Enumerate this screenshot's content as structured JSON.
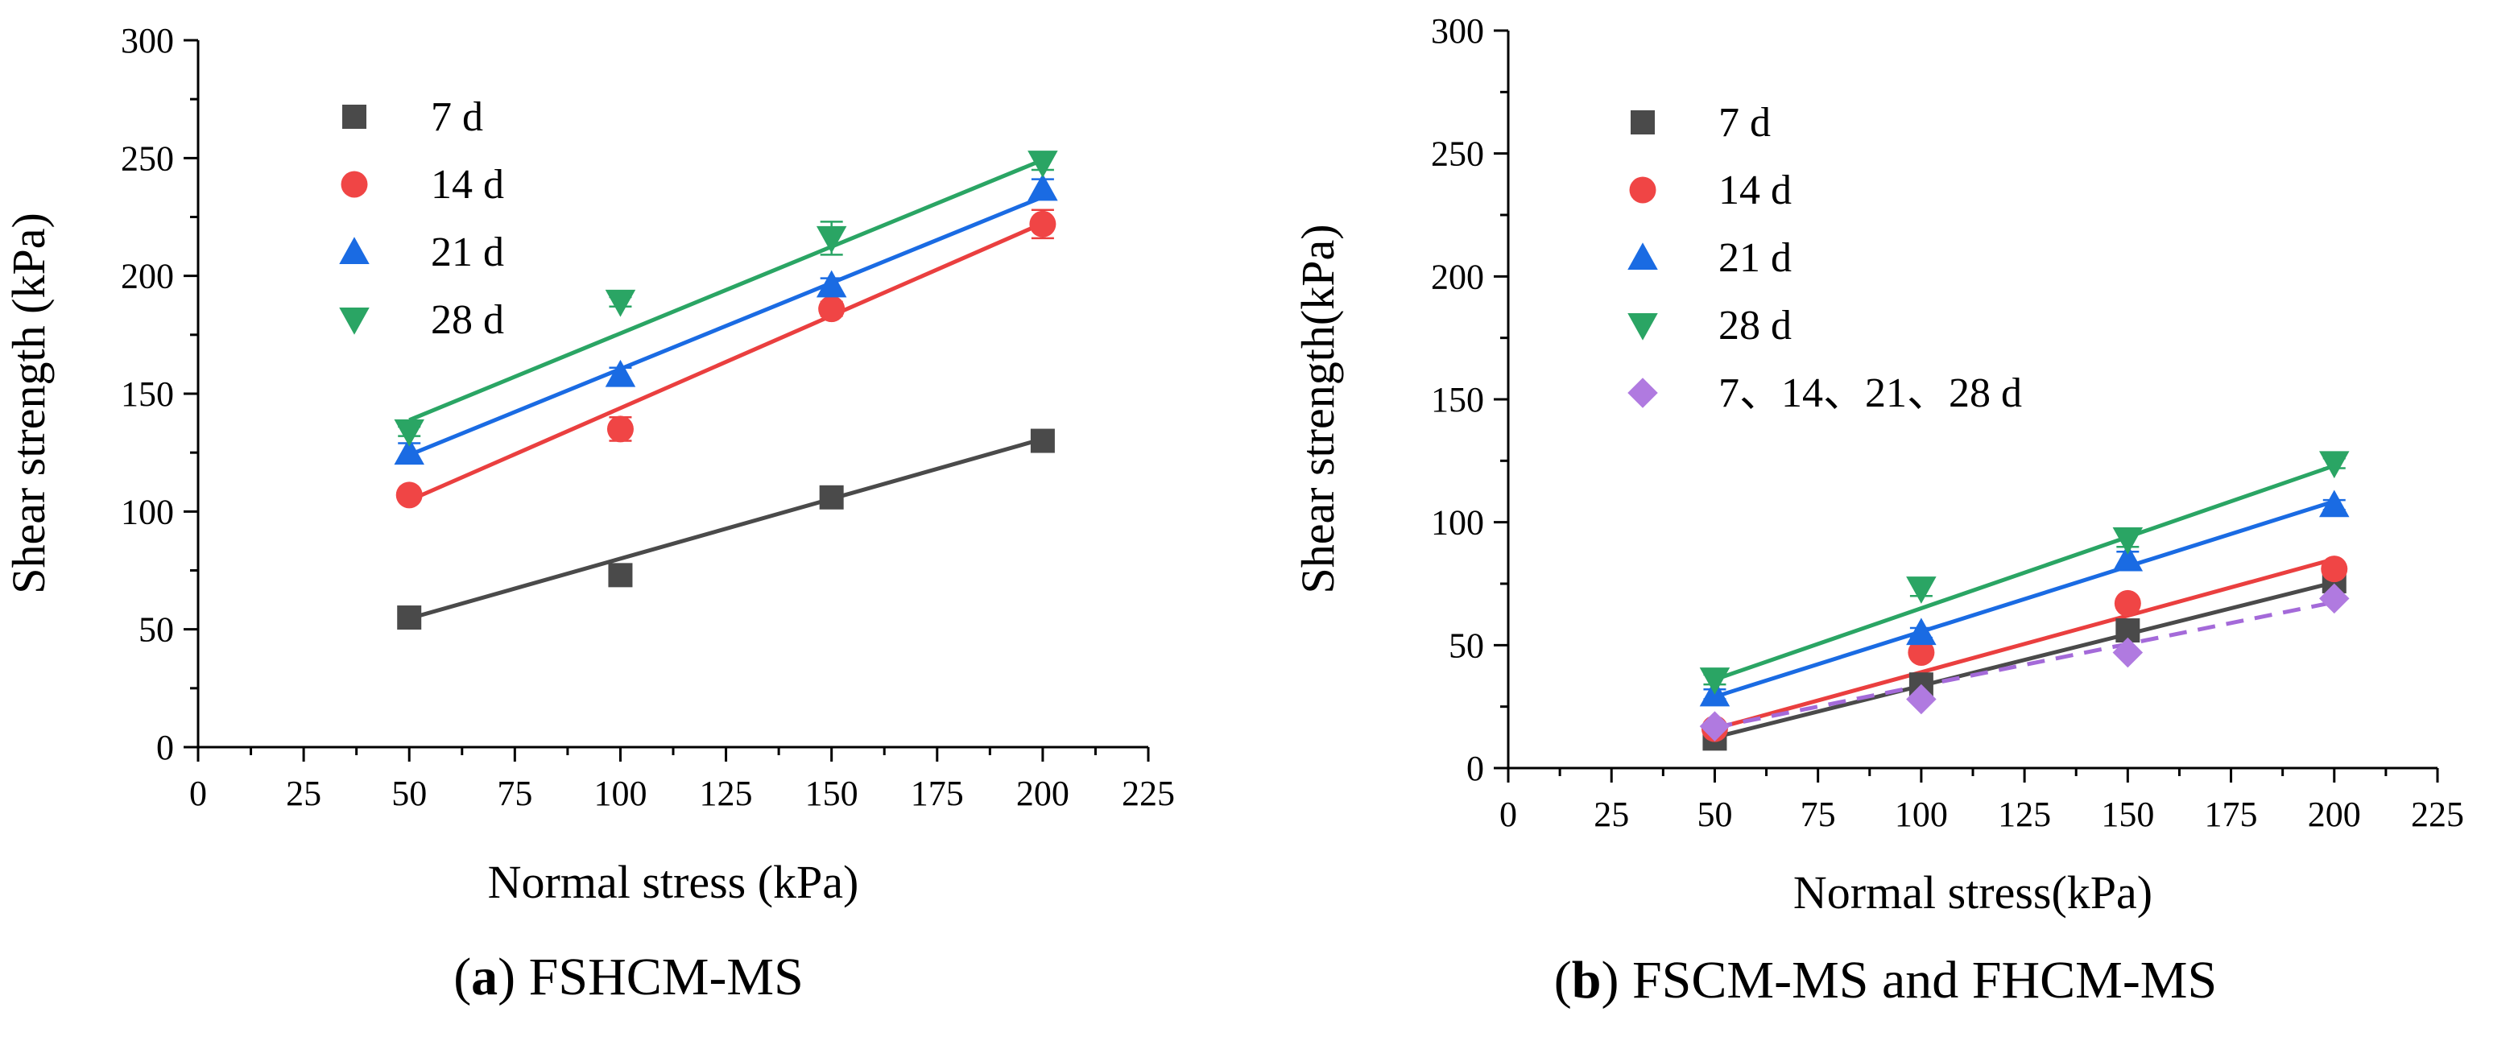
{
  "charts": [
    {
      "caption": {
        "prefix": "(",
        "letter": "a",
        "suffix": ")",
        "text": " FSHCM-MS"
      },
      "chart_data": {
        "type": "scatter",
        "title": "",
        "xlabel": "Normal stress (kPa)",
        "ylabel": "Shear strength (kPa)",
        "xlim": [
          0,
          225
        ],
        "ylim": [
          0,
          300
        ],
        "xticks": [
          0,
          25,
          50,
          75,
          100,
          125,
          150,
          175,
          200,
          225
        ],
        "yticks": [
          0,
          50,
          100,
          150,
          200,
          250,
          300
        ],
        "legend_position": "top-left",
        "grid": false,
        "series": [
          {
            "name": "7 d",
            "marker": "square",
            "color": "#4a4a4a",
            "line_color": "#4a4a4a",
            "dashed": false,
            "x": [
              50,
              100,
              150,
              200
            ],
            "y": [
              55,
              73,
              106,
              130
            ],
            "err": [
              0,
              3,
              2,
              2
            ],
            "fit": {
              "slope": 0.508,
              "intercept": 29.2,
              "x_range": [
                50,
                200
              ]
            }
          },
          {
            "name": "14 d",
            "marker": "circle",
            "color": "#f04545",
            "line_color": "#ea3f3f",
            "dashed": false,
            "x": [
              50,
              100,
              150,
              200
            ],
            "y": [
              107,
              135,
              186,
              222
            ],
            "err": [
              2,
              5,
              3,
              6
            ],
            "fit": {
              "slope": 0.784,
              "intercept": 65.5,
              "x_range": [
                50,
                200
              ]
            }
          },
          {
            "name": "21 d",
            "marker": "triangle",
            "color": "#1a6be3",
            "line_color": "#1a6be3",
            "dashed": false,
            "x": [
              50,
              100,
              150,
              200
            ],
            "y": [
              125,
              158,
              196,
              237
            ],
            "err": [
              4,
              3,
              3,
              4
            ],
            "fit": {
              "slope": 0.73,
              "intercept": 87.5,
              "x_range": [
                50,
                200
              ]
            }
          },
          {
            "name": "28 d",
            "marker": "triangle-down",
            "color": "#2aa564",
            "line_color": "#2aa564",
            "dashed": false,
            "x": [
              50,
              100,
              150,
              200
            ],
            "y": [
              134,
              189,
              216,
              248
            ],
            "err": [
              2,
              2,
              7,
              3
            ],
            "fit": {
              "slope": 0.736,
              "intercept": 102,
              "x_range": [
                50,
                200
              ]
            }
          }
        ]
      }
    },
    {
      "caption": {
        "prefix": "(",
        "letter": "b",
        "suffix": ")",
        "text": " FSCM-MS and FHCM-MS"
      },
      "chart_data": {
        "type": "scatter",
        "title": "",
        "xlabel": "Normal stress(kPa)",
        "ylabel": "Shear strength(kPa)",
        "xlim": [
          0,
          225
        ],
        "ylim": [
          0,
          300
        ],
        "xticks": [
          0,
          25,
          50,
          75,
          100,
          125,
          150,
          175,
          200,
          225
        ],
        "yticks": [
          0,
          50,
          100,
          150,
          200,
          250,
          300
        ],
        "legend_position": "top-left",
        "grid": false,
        "series": [
          {
            "name": "7 d",
            "marker": "square",
            "color": "#4a4a4a",
            "line_color": "#4a4a4a",
            "dashed": false,
            "x": [
              50,
              100,
              150,
              200
            ],
            "y": [
              12,
              34,
              56,
              76
            ],
            "err": [
              1,
              1,
              1,
              2
            ],
            "fit": {
              "slope": 0.42,
              "intercept": -8.5,
              "x_range": [
                50,
                200
              ]
            }
          },
          {
            "name": "14 d",
            "marker": "circle",
            "color": "#f04545",
            "line_color": "#ea3f3f",
            "dashed": false,
            "x": [
              50,
              100,
              150,
              200
            ],
            "y": [
              16,
              47,
              67,
              81
            ],
            "err": [
              1,
              2,
              2,
              2
            ],
            "fit": {
              "slope": 0.46,
              "intercept": -7,
              "x_range": [
                50,
                200
              ]
            }
          },
          {
            "name": "21 d",
            "marker": "triangle",
            "color": "#1a6be3",
            "line_color": "#1a6be3",
            "dashed": false,
            "x": [
              50,
              100,
              150,
              200
            ],
            "y": [
              30,
              55,
              85,
              107
            ],
            "err": [
              2,
              2,
              3,
              2
            ],
            "fit": {
              "slope": 0.53,
              "intercept": 2.5,
              "x_range": [
                50,
                200
              ]
            }
          },
          {
            "name": "28 d",
            "marker": "triangle-down",
            "color": "#2aa564",
            "line_color": "#2aa564",
            "dashed": false,
            "x": [
              50,
              100,
              150,
              200
            ],
            "y": [
              36,
              73,
              93,
              124
            ],
            "err": [
              2,
              3,
              3,
              2
            ],
            "fit": {
              "slope": 0.58,
              "intercept": 7,
              "x_range": [
                50,
                200
              ]
            }
          },
          {
            "name": "7、14、21、28 d",
            "marker": "diamond",
            "color": "#b07ae0",
            "line_color": "#a46ad9",
            "dashed": true,
            "x": [
              50,
              100,
              150,
              200
            ],
            "y": [
              17,
              28,
              47,
              69
            ],
            "err": [
              0,
              0,
              0,
              0
            ],
            "fit": {
              "slope": 0.34,
              "intercept": -0.5,
              "x_range": [
                50,
                200
              ]
            }
          }
        ]
      }
    }
  ]
}
